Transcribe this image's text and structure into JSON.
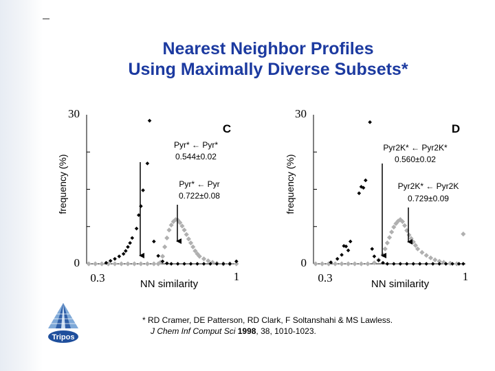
{
  "slide": {
    "title_line1": "Nearest Neighbor Profiles",
    "title_line2": "Using Maximally Diverse Subsets*",
    "citation_line1": "* RD Cramer, DE Patterson, RD Clark, F Soltanshahi & MS Lawless.",
    "citation_journal": "J Chem Inf Comput Sci",
    "citation_year": "1998",
    "citation_rest": ", 38, 1010-1023.",
    "logo_text": "Tripos",
    "colors": {
      "title": "#1c3aa0",
      "gray_series": "#b0b0b0",
      "black_series": "#000000"
    }
  },
  "chart_data": [
    {
      "type": "scatter",
      "panel": "C",
      "ylabel": "frequency (%)",
      "xlabel": "NN similarity",
      "xlim": [
        0.3,
        1
      ],
      "ylim": [
        0,
        30
      ],
      "x_ticks": [
        "0.3",
        "1"
      ],
      "y_ticks": [
        "0",
        "30"
      ],
      "annotations": [
        {
          "line1": "Pyr* ← Pyr*",
          "line2": "0.544±0.02"
        },
        {
          "line1": "Pyr* ← Pyr",
          "line2": "0.722±0.08"
        }
      ],
      "series": [
        {
          "name": "Pyr* ← Pyr* (diamonds)",
          "color": "#000000",
          "points": [
            [
              0.39,
              0.2
            ],
            [
              0.41,
              0.6
            ],
            [
              0.43,
              1.0
            ],
            [
              0.45,
              1.5
            ],
            [
              0.47,
              2.0
            ],
            [
              0.48,
              2.6
            ],
            [
              0.49,
              3.4
            ],
            [
              0.5,
              4.2
            ],
            [
              0.51,
              5.2
            ],
            [
              0.53,
              7.1
            ],
            [
              0.54,
              9.8
            ],
            [
              0.55,
              11.6
            ],
            [
              0.56,
              14.8
            ],
            [
              0.58,
              20.2
            ],
            [
              0.59,
              28.8
            ],
            [
              0.61,
              4.5
            ],
            [
              0.63,
              1.6
            ],
            [
              0.65,
              0.5
            ],
            [
              0.67,
              0.1
            ],
            [
              0.69,
              0.0
            ],
            [
              0.72,
              0.0
            ],
            [
              0.75,
              0.0
            ],
            [
              0.78,
              0.0
            ],
            [
              0.81,
              0.0
            ],
            [
              0.84,
              0.0
            ],
            [
              0.87,
              0.0
            ],
            [
              0.9,
              0.0
            ],
            [
              0.93,
              0.0
            ],
            [
              0.96,
              0.0
            ],
            [
              0.99,
              0.5
            ]
          ]
        },
        {
          "name": "Pyr* ← Pyr (gray diamonds)",
          "color": "#b0b0b0",
          "points": [
            [
              0.31,
              0.0
            ],
            [
              0.34,
              0.0
            ],
            [
              0.37,
              0.0
            ],
            [
              0.4,
              0.0
            ],
            [
              0.43,
              0.0
            ],
            [
              0.46,
              0.0
            ],
            [
              0.49,
              0.0
            ],
            [
              0.52,
              0.0
            ],
            [
              0.55,
              0.0
            ],
            [
              0.58,
              0.0
            ],
            [
              0.61,
              0.0
            ],
            [
              0.63,
              0.0
            ],
            [
              0.64,
              0.3
            ],
            [
              0.65,
              1.5
            ],
            [
              0.66,
              3.4
            ],
            [
              0.67,
              5.2
            ],
            [
              0.68,
              6.8
            ],
            [
              0.69,
              7.8
            ],
            [
              0.7,
              8.5
            ],
            [
              0.71,
              8.9
            ],
            [
              0.72,
              8.8
            ],
            [
              0.73,
              8.3
            ],
            [
              0.74,
              7.6
            ],
            [
              0.75,
              6.8
            ],
            [
              0.76,
              5.9
            ],
            [
              0.77,
              5.0
            ],
            [
              0.78,
              4.2
            ],
            [
              0.79,
              3.4
            ],
            [
              0.8,
              2.6
            ],
            [
              0.81,
              2.0
            ],
            [
              0.82,
              1.5
            ],
            [
              0.84,
              1.0
            ],
            [
              0.86,
              0.6
            ],
            [
              0.88,
              0.3
            ],
            [
              0.9,
              0.1
            ],
            [
              0.93,
              0.0
            ],
            [
              0.96,
              0.0
            ],
            [
              0.99,
              0.0
            ]
          ]
        }
      ]
    },
    {
      "type": "scatter",
      "panel": "D",
      "ylabel": "frequency (%)",
      "xlabel": "NN similarity",
      "xlim": [
        0.3,
        1
      ],
      "ylim": [
        0,
        30
      ],
      "x_ticks": [
        "0.3",
        "1"
      ],
      "y_ticks": [
        "0",
        "30"
      ],
      "annotations": [
        {
          "line1": "Pyr2K* ← Pyr2K*",
          "line2": "0.560±0.02"
        },
        {
          "line1": "Pyr2K* ← Pyr2K",
          "line2": "0.729±0.09"
        }
      ],
      "series": [
        {
          "name": "Pyr2K* ← Pyr2K* (diamonds)",
          "color": "#000000",
          "points": [
            [
              0.38,
              0.3
            ],
            [
              0.41,
              1.0
            ],
            [
              0.43,
              1.8
            ],
            [
              0.44,
              3.6
            ],
            [
              0.45,
              3.5
            ],
            [
              0.46,
              2.7
            ],
            [
              0.47,
              4.5
            ],
            [
              0.51,
              14.2
            ],
            [
              0.52,
              15.5
            ],
            [
              0.53,
              15.3
            ],
            [
              0.54,
              16.8
            ],
            [
              0.56,
              28.5
            ],
            [
              0.57,
              3.0
            ],
            [
              0.58,
              1.5
            ],
            [
              0.6,
              0.7
            ],
            [
              0.62,
              0.2
            ],
            [
              0.64,
              0.0
            ],
            [
              0.67,
              0.0
            ],
            [
              0.7,
              0.0
            ],
            [
              0.73,
              0.0
            ],
            [
              0.76,
              0.0
            ],
            [
              0.79,
              0.0
            ],
            [
              0.82,
              0.0
            ],
            [
              0.85,
              0.0
            ],
            [
              0.88,
              0.0
            ],
            [
              0.91,
              0.0
            ],
            [
              0.94,
              0.0
            ],
            [
              0.97,
              0.0
            ],
            [
              0.99,
              0.0
            ]
          ]
        },
        {
          "name": "Pyr2K* ← Pyr2K (gray diamonds)",
          "color": "#b0b0b0",
          "points": [
            [
              0.31,
              0.0
            ],
            [
              0.34,
              0.0
            ],
            [
              0.37,
              0.0
            ],
            [
              0.4,
              0.0
            ],
            [
              0.43,
              0.0
            ],
            [
              0.46,
              0.0
            ],
            [
              0.49,
              0.0
            ],
            [
              0.52,
              0.0
            ],
            [
              0.55,
              0.0
            ],
            [
              0.58,
              0.2
            ],
            [
              0.6,
              0.8
            ],
            [
              0.62,
              1.8
            ],
            [
              0.63,
              3.0
            ],
            [
              0.64,
              4.2
            ],
            [
              0.65,
              5.3
            ],
            [
              0.66,
              6.4
            ],
            [
              0.67,
              7.4
            ],
            [
              0.68,
              8.1
            ],
            [
              0.69,
              8.6
            ],
            [
              0.7,
              8.9
            ],
            [
              0.71,
              8.5
            ],
            [
              0.72,
              7.7
            ],
            [
              0.73,
              6.7
            ],
            [
              0.74,
              5.8
            ],
            [
              0.75,
              5.1
            ],
            [
              0.76,
              4.4
            ],
            [
              0.77,
              3.7
            ],
            [
              0.78,
              3.0
            ],
            [
              0.8,
              2.3
            ],
            [
              0.82,
              1.7
            ],
            [
              0.84,
              1.2
            ],
            [
              0.86,
              0.8
            ],
            [
              0.88,
              0.5
            ],
            [
              0.9,
              0.3
            ],
            [
              0.93,
              0.1
            ],
            [
              0.96,
              0.0
            ],
            [
              0.99,
              6.0
            ]
          ]
        }
      ]
    }
  ]
}
